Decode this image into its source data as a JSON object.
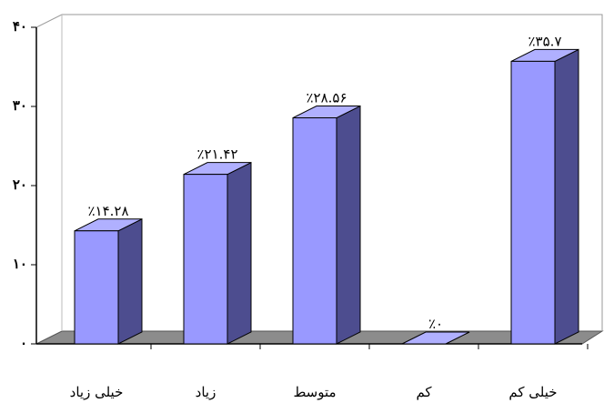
{
  "chart_data": {
    "type": "bar3d",
    "categories": [
      "خیلی زیاد",
      "زیاد",
      "متوسط",
      "کم",
      "خیلی کم"
    ],
    "values": [
      14.28,
      21.42,
      28.56,
      0,
      35.7
    ],
    "value_labels": [
      "٪۱۴.۲۸",
      "٪۲۱.۴۲",
      "٪۲۸.۵۶",
      "٪۰",
      "٪۳۵.۷"
    ],
    "color": "#9999ff",
    "ylim": [
      0,
      40
    ],
    "yticks": [
      {
        "value": 0,
        "label": "۰"
      },
      {
        "value": 10,
        "label": "۱۰"
      },
      {
        "value": 20,
        "label": "۲۰"
      },
      {
        "value": 30,
        "label": "۳۰"
      },
      {
        "value": 40,
        "label": "۴۰"
      }
    ]
  }
}
